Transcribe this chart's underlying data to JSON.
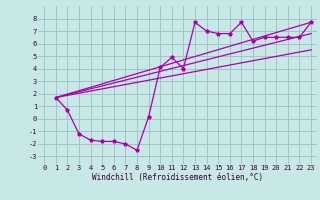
{
  "xlabel": "Windchill (Refroidissement éolien,°C)",
  "bg_color": "#c8e8e8",
  "grid_color": "#a0c4c4",
  "line_color": "#aa00aa",
  "xlim": [
    -0.5,
    23.5
  ],
  "ylim": [
    -3.6,
    9.0
  ],
  "yticks": [
    -3,
    -2,
    -1,
    0,
    1,
    2,
    3,
    4,
    5,
    6,
    7,
    8
  ],
  "xticks": [
    0,
    1,
    2,
    3,
    4,
    5,
    6,
    7,
    8,
    9,
    10,
    11,
    12,
    13,
    14,
    15,
    16,
    17,
    18,
    19,
    20,
    21,
    22,
    23
  ],
  "main_x": [
    1,
    2,
    3,
    4,
    5,
    6,
    7,
    8,
    9,
    10,
    11,
    12,
    13,
    14,
    15,
    16,
    17,
    18,
    19,
    20,
    21,
    22,
    23
  ],
  "main_y": [
    1.7,
    0.7,
    -1.2,
    -1.7,
    -1.8,
    -1.8,
    -2.0,
    -2.5,
    0.15,
    4.1,
    4.9,
    4.0,
    7.7,
    7.0,
    6.8,
    6.8,
    7.7,
    6.2,
    6.5,
    6.5,
    6.5,
    6.5,
    7.7
  ],
  "trend1_x": [
    1,
    23
  ],
  "trend1_y": [
    1.7,
    7.7
  ],
  "trend2_x": [
    1,
    23
  ],
  "trend2_y": [
    1.7,
    6.8
  ],
  "trend3_x": [
    1,
    23
  ],
  "trend3_y": [
    1.7,
    5.5
  ],
  "xlabel_fontsize": 5.5,
  "tick_fontsize": 5.0
}
